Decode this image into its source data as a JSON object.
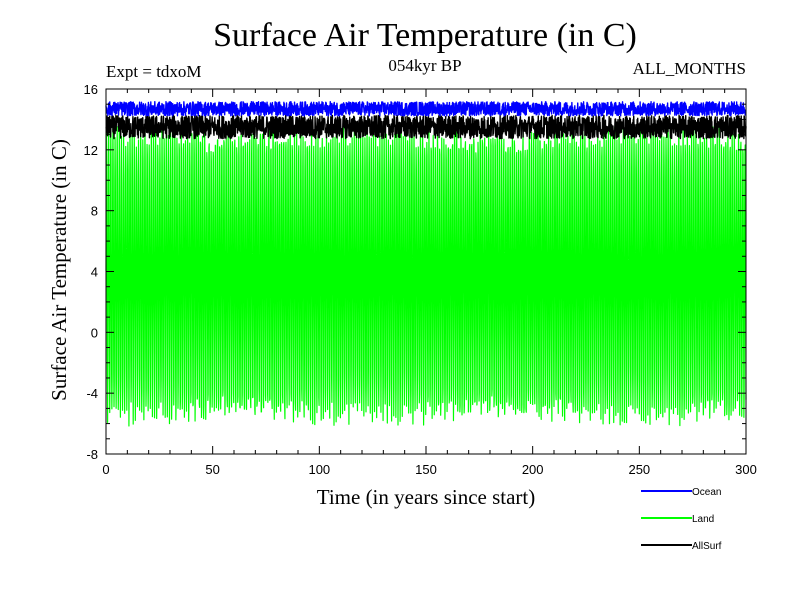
{
  "header": {
    "title": "Surface Air Temperature (in C)",
    "subtitle_left": "Expt = tdxoM",
    "subtitle_center": "054kyr BP",
    "subtitle_right": "ALL_MONTHS"
  },
  "chart_data": {
    "type": "line",
    "title": "Surface Air Temperature (in C)",
    "xlabel": "Time (in years since start)",
    "ylabel": "Surface Air Temperature (in C)",
    "xlim": [
      0,
      300
    ],
    "ylim": [
      -8,
      16
    ],
    "x_ticks": [
      0,
      50,
      100,
      150,
      200,
      250,
      300
    ],
    "y_ticks": [
      -8,
      -4,
      0,
      4,
      8,
      12,
      16
    ],
    "grid": false,
    "legend_position": "bottom-right",
    "x_step": 0.0833,
    "series": [
      {
        "name": "Ocean",
        "color": "#0000ff",
        "min": 14.2,
        "max": 15.3,
        "mean": 14.7
      },
      {
        "name": "Land",
        "color": "#00ff00",
        "min": -6.5,
        "max": 13.5,
        "mean": 3.8
      },
      {
        "name": "AllSurf",
        "color": "#000000",
        "min": 12.5,
        "max": 14.3,
        "mean": 13.5
      }
    ]
  }
}
